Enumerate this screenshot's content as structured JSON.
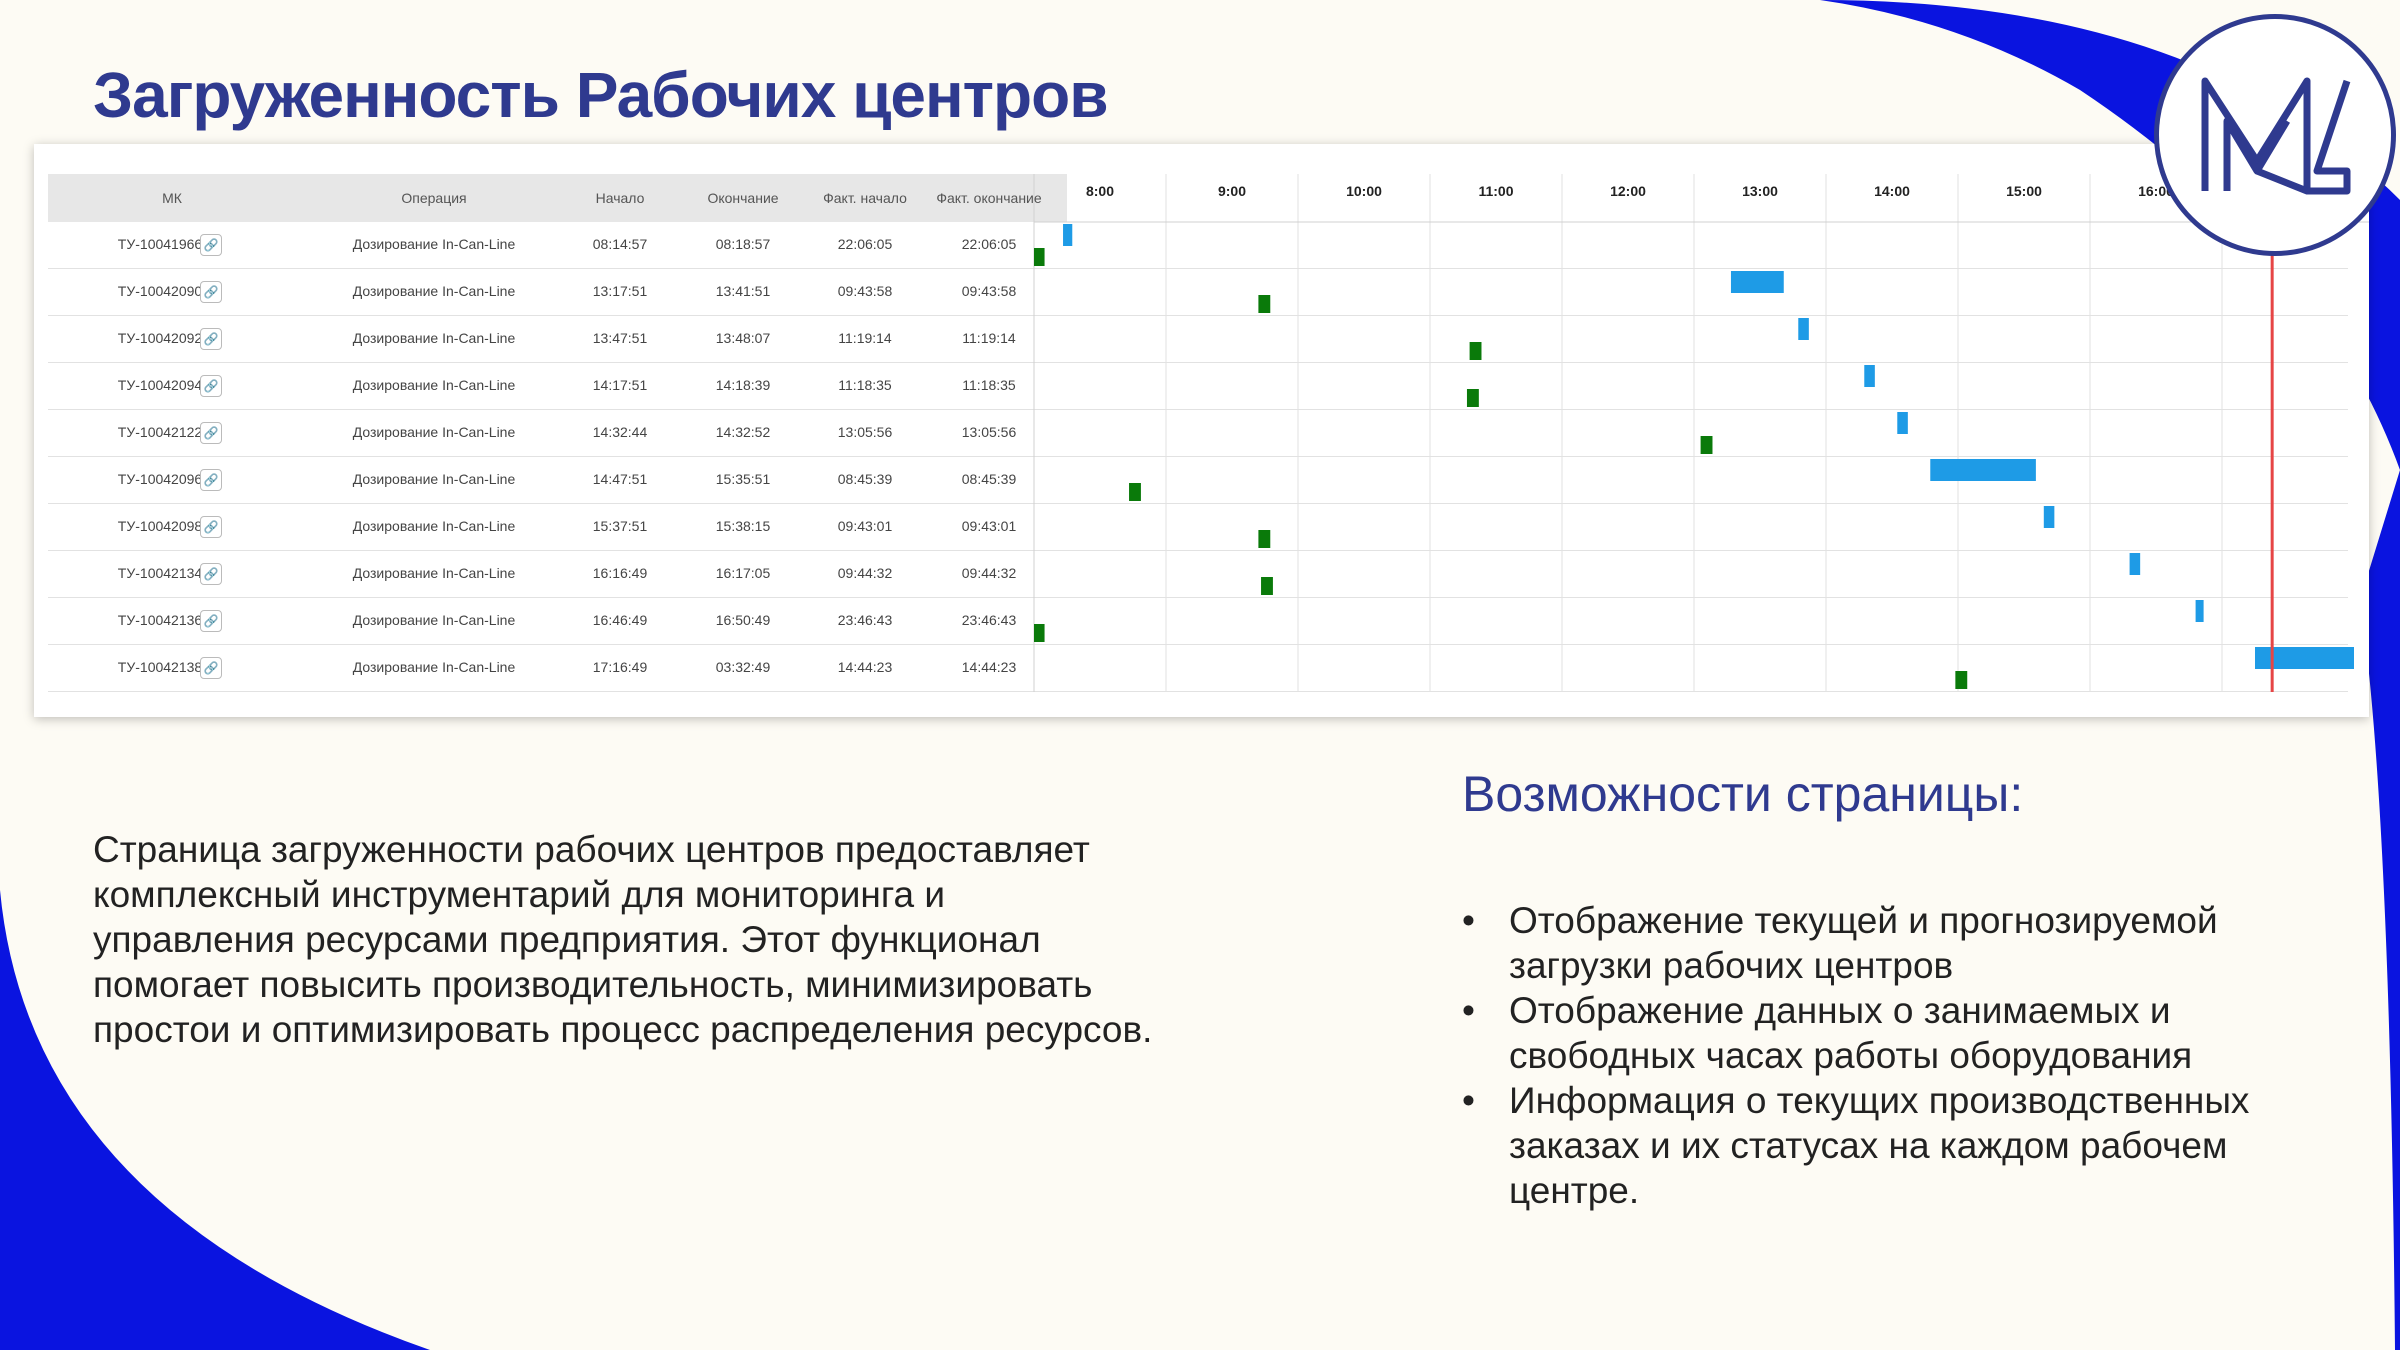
{
  "slide": {
    "title": "Загруженность Рабочих центров",
    "description": "Страница загруженности рабочих центров предоставляет комплексный инструментарий для мониторинга и управления ресурсами предприятия. Этот функционал помогает повысить производительность, минимизировать простои и оптимизировать процесс распределения ресурсов.",
    "features_title": "Возможности страницы:",
    "features": [
      "Отображение текущей и прогнозируемой загрузки рабочих центров",
      " Отображение данных о занимаемых и свободных часах работы оборудования",
      "Информация о текущих производственных заказах и их статусах на каждом рабочем центре."
    ],
    "bullet": "•"
  },
  "colors": {
    "accent_blue": "#2f3a8f",
    "shape_blue": "#0a14e0",
    "bar_green": "#0a7a0a",
    "bar_blue": "#1e9be6",
    "now_line": "#e64545"
  },
  "table": {
    "headers": [
      "МК",
      "Операция",
      "Начало",
      "Окончание",
      "Факт. начало",
      "Факт. окончание"
    ],
    "link_icon": "🔗",
    "rows": [
      {
        "mk": "ТУ-10041966",
        "op": "Дозирование In-Can-Line",
        "start": "08:14:57",
        "end": "08:18:57",
        "fact_start": "22:06:05",
        "fact_end": "22:06:05"
      },
      {
        "mk": "ТУ-10042090",
        "op": "Дозирование In-Can-Line",
        "start": "13:17:51",
        "end": "13:41:51",
        "fact_start": "09:43:58",
        "fact_end": "09:43:58"
      },
      {
        "mk": "ТУ-10042092",
        "op": "Дозирование In-Can-Line",
        "start": "13:47:51",
        "end": "13:48:07",
        "fact_start": "11:19:14",
        "fact_end": "11:19:14"
      },
      {
        "mk": "ТУ-10042094",
        "op": "Дозирование In-Can-Line",
        "start": "14:17:51",
        "end": "14:18:39",
        "fact_start": "11:18:35",
        "fact_end": "11:18:35"
      },
      {
        "mk": "ТУ-10042122",
        "op": "Дозирование In-Can-Line",
        "start": "14:32:44",
        "end": "14:32:52",
        "fact_start": "13:05:56",
        "fact_end": "13:05:56"
      },
      {
        "mk": "ТУ-10042096",
        "op": "Дозирование In-Can-Line",
        "start": "14:47:51",
        "end": "15:35:51",
        "fact_start": "08:45:39",
        "fact_end": "08:45:39"
      },
      {
        "mk": "ТУ-10042098",
        "op": "Дозирование In-Can-Line",
        "start": "15:37:51",
        "end": "15:38:15",
        "fact_start": "09:43:01",
        "fact_end": "09:43:01"
      },
      {
        "mk": "ТУ-10042134",
        "op": "Дозирование In-Can-Line",
        "start": "16:16:49",
        "end": "16:17:05",
        "fact_start": "09:44:32",
        "fact_end": "09:44:32"
      },
      {
        "mk": "ТУ-10042136",
        "op": "Дозирование In-Can-Line",
        "start": "16:46:49",
        "end": "16:50:49",
        "fact_start": "23:46:43",
        "fact_end": "23:46:43"
      },
      {
        "mk": "ТУ-10042138",
        "op": "Дозирование In-Can-Line",
        "start": "17:16:49",
        "end": "03:32:49",
        "fact_start": "14:44:23",
        "fact_end": "14:44:23"
      }
    ]
  },
  "gantt": {
    "hours": [
      "8:00",
      "9:00",
      "10:00",
      "11:00",
      "12:00",
      "13:00",
      "14:00",
      "15:00",
      "16:00"
    ],
    "hour_start": 7.5,
    "current_time_hour": 16.88,
    "bars": [
      {
        "row": 0,
        "kind": "fact",
        "start": 7.5,
        "end": 7.58
      },
      {
        "row": 0,
        "kind": "plan",
        "start": 7.72,
        "end": 7.79
      },
      {
        "row": 1,
        "kind": "plan",
        "start": 12.78,
        "end": 13.18
      },
      {
        "row": 1,
        "kind": "fact",
        "start": 9.2,
        "end": 9.29
      },
      {
        "row": 2,
        "kind": "plan",
        "start": 13.29,
        "end": 13.37
      },
      {
        "row": 2,
        "kind": "fact",
        "start": 10.8,
        "end": 10.89
      },
      {
        "row": 3,
        "kind": "plan",
        "start": 13.79,
        "end": 13.87
      },
      {
        "row": 3,
        "kind": "fact",
        "start": 10.78,
        "end": 10.87
      },
      {
        "row": 4,
        "kind": "plan",
        "start": 14.04,
        "end": 14.12
      },
      {
        "row": 4,
        "kind": "fact",
        "start": 12.55,
        "end": 12.64
      },
      {
        "row": 5,
        "kind": "plan",
        "start": 14.29,
        "end": 15.09
      },
      {
        "row": 5,
        "kind": "fact",
        "start": 8.22,
        "end": 8.31
      },
      {
        "row": 6,
        "kind": "plan",
        "start": 15.15,
        "end": 15.23
      },
      {
        "row": 6,
        "kind": "fact",
        "start": 9.2,
        "end": 9.29
      },
      {
        "row": 7,
        "kind": "plan",
        "start": 15.8,
        "end": 15.88
      },
      {
        "row": 7,
        "kind": "fact",
        "start": 9.22,
        "end": 9.31
      },
      {
        "row": 8,
        "kind": "plan",
        "start": 16.3,
        "end": 16.35
      },
      {
        "row": 8,
        "kind": "fact",
        "start": 7.5,
        "end": 7.58
      },
      {
        "row": 9,
        "kind": "plan",
        "start": 16.75,
        "end": 17.5
      },
      {
        "row": 9,
        "kind": "fact",
        "start": 14.48,
        "end": 14.57
      }
    ]
  }
}
